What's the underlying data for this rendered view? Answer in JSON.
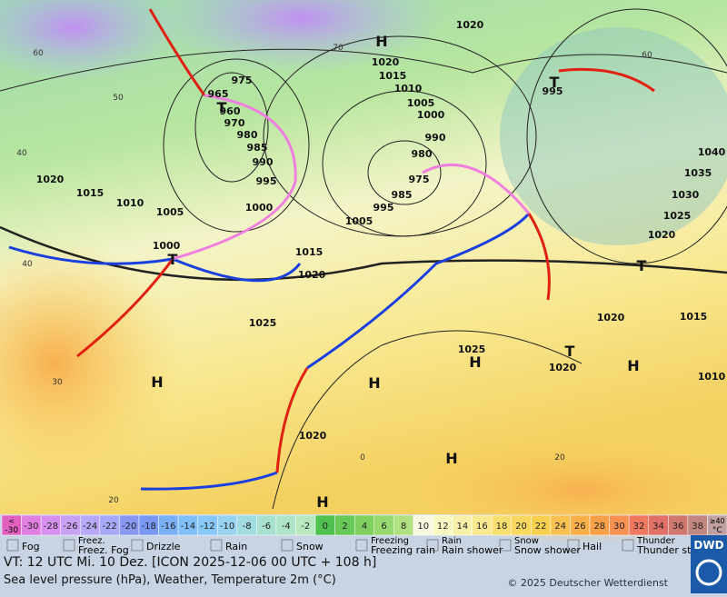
{
  "map": {
    "isobar_labels": [
      "965",
      "975",
      "960",
      "970",
      "980",
      "985",
      "990",
      "995",
      "1000",
      "1005",
      "1010",
      "1015",
      "1020",
      "1000",
      "1015",
      "1020",
      "1025",
      "1005",
      "995",
      "985",
      "975",
      "980",
      "990",
      "1000",
      "1005",
      "1010",
      "1015",
      "1020",
      "1020",
      "995",
      "1040",
      "1035",
      "1030",
      "1025",
      "1020",
      "1020",
      "1015",
      "1010",
      "1025",
      "1020",
      "1020"
    ],
    "pressure_centers": [
      "H",
      "T",
      "T",
      "T",
      "T",
      "T",
      "H",
      "H",
      "H",
      "H",
      "H",
      "H"
    ],
    "temperature_labels": [
      "60",
      "50",
      "40",
      "40",
      "30",
      "20",
      "20",
      "0",
      "60",
      "70"
    ]
  },
  "scale": {
    "cells": [
      {
        "top": "<",
        "bottom": "-30"
      },
      -30,
      -28,
      -26,
      -24,
      -22,
      -20,
      -18,
      -16,
      -14,
      -12,
      -10,
      -8,
      -6,
      -4,
      -2,
      0,
      2,
      4,
      6,
      8,
      10,
      12,
      14,
      16,
      18,
      20,
      22,
      24,
      26,
      28,
      30,
      32,
      34,
      36,
      38,
      {
        "top": "≥40",
        "bottom": "°C"
      }
    ],
    "colors": [
      "#e060c0",
      "#e07fe0",
      "#d890f0",
      "#c8a0f4",
      "#b8a8f8",
      "#a8a8f8",
      "#8898f0",
      "#7898f4",
      "#7ab0f8",
      "#80bff8",
      "#88c8f8",
      "#98d4f0",
      "#a0dce0",
      "#a8e0d0",
      "#b0e4c8",
      "#b8e8c0",
      "#50c050",
      "#68c858",
      "#80d060",
      "#98d870",
      "#b0e080",
      "#f8f8e0",
      "#f8f8c0",
      "#f8f0a8",
      "#f8e890",
      "#f8e070",
      "#f8d860",
      "#f8d050",
      "#f8c050",
      "#f8b048",
      "#f8a048",
      "#f89050",
      "#f07860",
      "#e07068",
      "#d07870",
      "#c08880",
      "#c0a0a0"
    ]
  },
  "legend": [
    "Fog",
    "Freez. Fog",
    "Drizzle",
    "Rain",
    "Snow",
    "Freezing rain",
    "Rain shower",
    "Snow shower",
    "Hail",
    "Thunder storm"
  ],
  "footer": {
    "valid_time": "VT: 12 UTC Mi.  10 Dez. [ICON 2025-12-06  00 UTC + 108 h]",
    "description": "Sea level pressure (hPa), Weather, Temperature 2m (°C)",
    "copyright": "© 2025 Deutscher Wetterdienst",
    "logo": "DWD"
  }
}
